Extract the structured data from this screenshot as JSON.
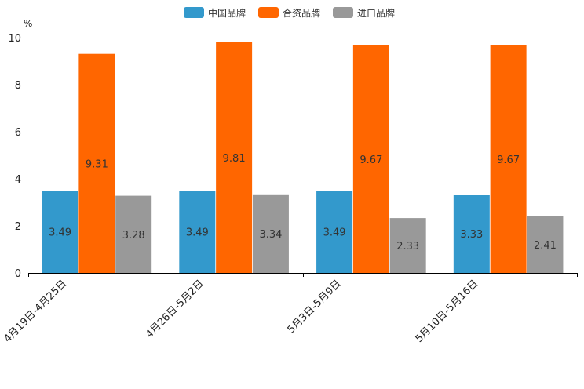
{
  "chart_data": {
    "type": "bar",
    "unit": "%",
    "categories": [
      "4月19日-4月25日",
      "4月26日-5月2日",
      "5月3日-5月9日",
      "5月10日-5月16日"
    ],
    "series": [
      {
        "name": "中国品牌",
        "color": "#3399cc",
        "values": [
          3.49,
          3.49,
          3.49,
          3.33
        ]
      },
      {
        "name": "合资品牌",
        "color": "#ff6600",
        "values": [
          9.31,
          9.81,
          9.67,
          9.67
        ]
      },
      {
        "name": "进口品牌",
        "color": "#999999",
        "values": [
          3.28,
          3.34,
          2.33,
          2.41
        ]
      }
    ],
    "ylim": [
      0,
      10
    ],
    "yticks": [
      0,
      2,
      4,
      6,
      8,
      10
    ],
    "legend_position": "top-center",
    "grid": false
  }
}
